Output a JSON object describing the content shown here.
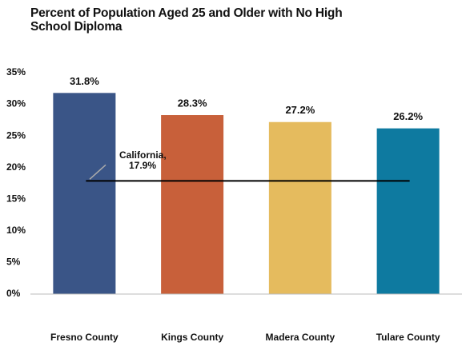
{
  "chart_data": {
    "type": "bar",
    "title": "Percent of Population Aged 25 and Older with No High School Diploma",
    "categories": [
      "Fresno County",
      "Kings County",
      "Madera County",
      "Tulare County"
    ],
    "values": [
      31.8,
      28.3,
      27.2,
      26.2
    ],
    "value_labels": [
      "31.8%",
      "28.3%",
      "27.2%",
      "26.2%"
    ],
    "colors": [
      "#3a5587",
      "#c8603a",
      "#e5bb5e",
      "#0e7aa0"
    ],
    "label_colors": [
      "#3a5587",
      "#c8603a",
      "#c9973a",
      "#0e7aa0"
    ],
    "ylim": [
      0,
      35
    ],
    "yticks": [
      {
        "value": 0,
        "label": "0%"
      },
      {
        "value": 5,
        "label": "5%"
      },
      {
        "value": 10,
        "label": "10%"
      },
      {
        "value": 15,
        "label": "15%"
      },
      {
        "value": 20,
        "label": "20%"
      },
      {
        "value": 25,
        "label": "25%"
      },
      {
        "value": 30,
        "label": "30%"
      },
      {
        "value": 35,
        "label": "35%"
      }
    ],
    "reference_line": {
      "name": "California,",
      "value": 17.9,
      "label": "17.9%"
    }
  }
}
